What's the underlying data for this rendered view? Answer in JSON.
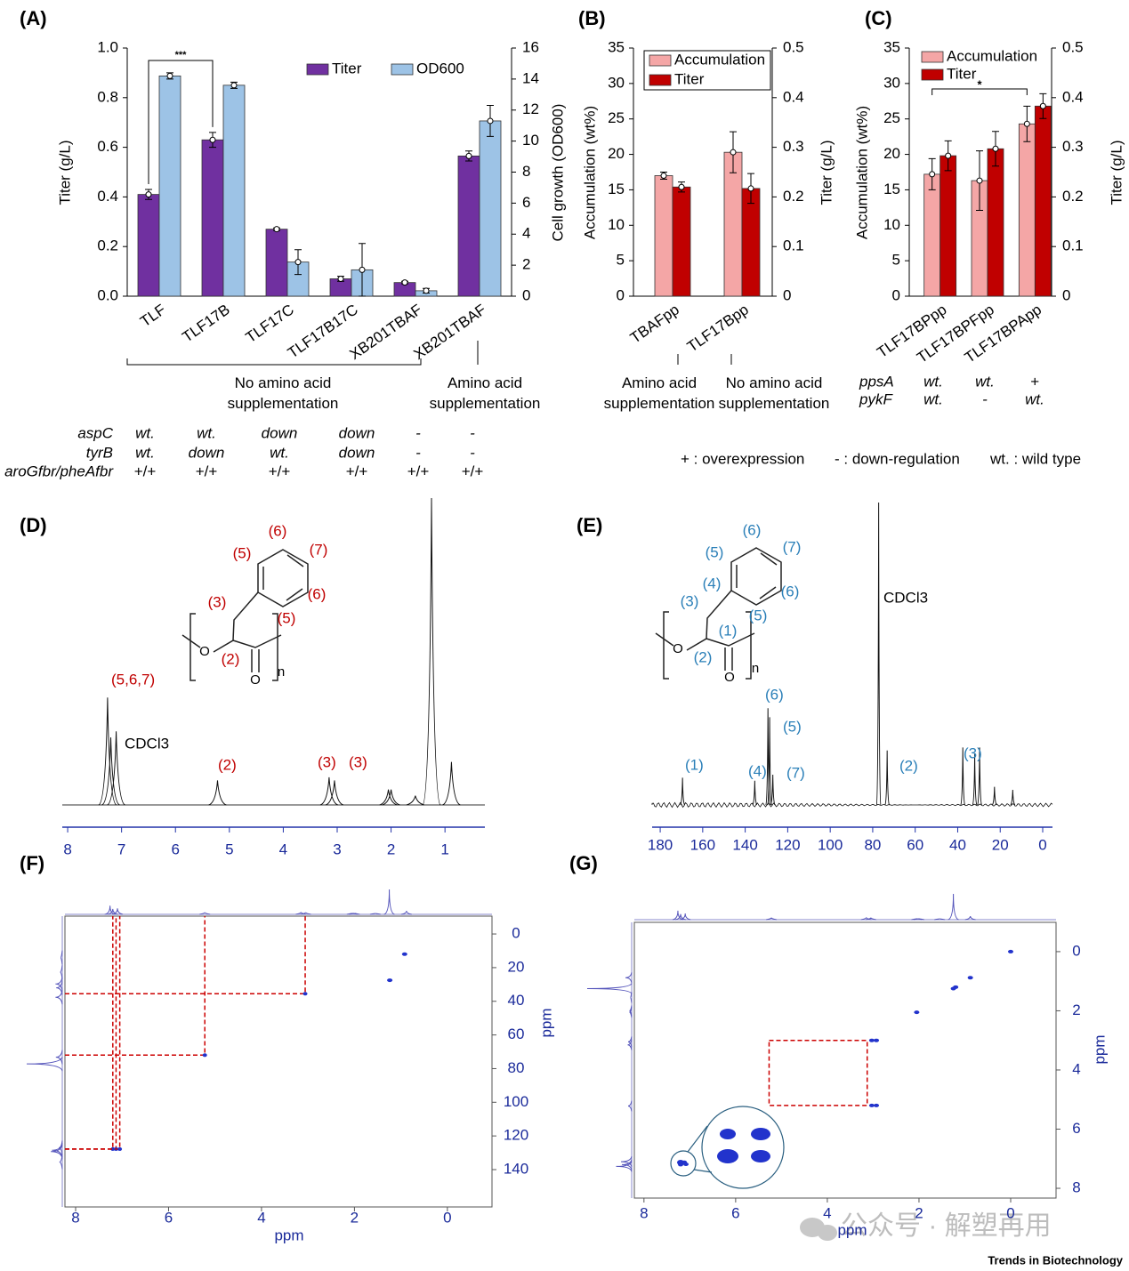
{
  "chart_data": [
    {
      "type": "bar",
      "panel": "(A)",
      "categories": [
        "TLF",
        "TLF17B",
        "TLF17C",
        "TLF17B17C",
        "XB201TBAF",
        "XB201TBAF"
      ],
      "series": [
        {
          "name": "Titer",
          "color": "#7030a0",
          "values": [
            0.41,
            0.63,
            0.27,
            0.07,
            0.055,
            0.565
          ],
          "errors": [
            0.02,
            0.03,
            0.005,
            0.01,
            0.005,
            0.02
          ]
        },
        {
          "name": "OD600",
          "color": "#9dc3e6",
          "axis": "y2",
          "values": [
            14.2,
            13.6,
            2.2,
            1.7,
            0.35,
            11.3
          ],
          "errors": [
            0.2,
            0.2,
            0.8,
            1.7,
            0.15,
            1.0
          ]
        }
      ],
      "y_label": "Titer (g/L)",
      "y2_label": "Cell growth (OD600)",
      "ylim": [
        0,
        1
      ],
      "yticks": [
        {
          "value": 0,
          "label": "0.0"
        },
        0.2,
        0.4,
        0.6,
        0.8,
        {
          "value": 1,
          "label": "1.0"
        }
      ],
      "y2lim": [
        0,
        16
      ],
      "y2ticks": [
        0,
        2,
        4,
        6,
        8,
        10,
        12,
        14,
        16
      ],
      "significance": "***",
      "groups": [
        "No amino acid supplementation",
        "Amino acid supplementation"
      ],
      "genotypes": {
        "rows": [
          "aspC",
          "tyrB",
          "aroGfbr/pheAfbr"
        ],
        "values": [
          [
            "wt.",
            "wt.",
            "down",
            "down",
            "-",
            "-"
          ],
          [
            "wt.",
            "down",
            "wt.",
            "down",
            "-",
            "-"
          ],
          [
            "+/+",
            "+/+",
            "+/+",
            "+/+",
            "+/+",
            "+/+"
          ]
        ]
      }
    },
    {
      "type": "bar",
      "panel": "(B)",
      "categories": [
        "TBAFpp",
        "TLF17Bpp"
      ],
      "series": [
        {
          "name": "Accumulation",
          "color": "#f4a6a6",
          "values": [
            17,
            20.3
          ],
          "errors": [
            0.5,
            2.9
          ]
        },
        {
          "name": "Titer",
          "color": "#c00000",
          "axis": "y2",
          "values": [
            0.22,
            0.217
          ],
          "errors": [
            0.01,
            0.03
          ]
        }
      ],
      "y_label": "Accumulation (wt%)",
      "y2_label": "Titer (g/L)",
      "ylim": [
        0,
        35
      ],
      "yticks": [
        0,
        5,
        10,
        15,
        20,
        25,
        30,
        35
      ],
      "y2lim": [
        0,
        0.5
      ],
      "y2ticks": [
        0,
        0.1,
        0.2,
        0.3,
        0.4,
        0.5
      ],
      "groups": [
        "Amino acid supplementation",
        "No amino acid supplementation"
      ]
    },
    {
      "type": "bar",
      "panel": "(C)",
      "categories": [
        "TLF17BPpp",
        "TLF17BPFpp",
        "TLF17BPApp"
      ],
      "series": [
        {
          "name": "Accumulation",
          "color": "#f4a6a6",
          "values": [
            17.2,
            16.3,
            24.3
          ],
          "errors": [
            2.2,
            4.2,
            2.5
          ]
        },
        {
          "name": "Titer",
          "color": "#c00000",
          "axis": "y2",
          "values": [
            0.283,
            0.297,
            0.383
          ],
          "errors": [
            0.03,
            0.035,
            0.025
          ]
        }
      ],
      "y_label": "Accumulation (wt%)",
      "y2_label": "Titer (g/L)",
      "ylim": [
        0,
        35
      ],
      "yticks": [
        0,
        5,
        10,
        15,
        20,
        25,
        30,
        35
      ],
      "y2lim": [
        0,
        0.5
      ],
      "y2ticks": [
        0,
        0.1,
        0.2,
        0.3,
        0.4,
        0.5
      ],
      "significance": "*",
      "genotypes": {
        "rows": [
          "ppsA",
          "pykF"
        ],
        "values": [
          [
            "wt.",
            "wt.",
            "+"
          ],
          [
            "wt.",
            "-",
            "wt."
          ]
        ]
      },
      "footnotes": [
        "+ : overexpression",
        "- : down-regulation",
        "wt. : wild type"
      ]
    },
    {
      "type": "spectrum",
      "panel": "(D)",
      "peaks": {
        "x": [
          7.26,
          7.2,
          7.1,
          5.22,
          3.15,
          3.05,
          2.05,
          2.0,
          1.55,
          1.25,
          0.88
        ],
        "intensity": [
          0.35,
          0.22,
          0.24,
          0.08,
          0.09,
          0.08,
          0.05,
          0.05,
          0.03,
          1.0,
          0.14
        ]
      },
      "xlim": [
        8.1,
        0.26
      ],
      "xticks": [
        8,
        7,
        6,
        5,
        4,
        3,
        2,
        1
      ],
      "peak_labels": [
        "(5,6,7)",
        "CDCl3",
        "(2)",
        "(3)",
        "(3)"
      ],
      "structure_labels": [
        "(6)",
        "(7)",
        "(5)",
        "(6)",
        "(3)",
        "(5)",
        "(2)"
      ],
      "atoms": [
        "O",
        "O",
        "n"
      ]
    },
    {
      "type": "spectrum",
      "panel": "(E)",
      "peaks": {
        "x": [
          169.5,
          135.5,
          129.3,
          128.5,
          127,
          77.2,
          73.2,
          37.6,
          32,
          29.7,
          22.7,
          14.1
        ],
        "intensity": [
          0.09,
          0.08,
          0.32,
          0.29,
          0.1,
          1.0,
          0.18,
          0.19,
          0.17,
          0.19,
          0.06,
          0.05
        ]
      },
      "xlim": [
        183.8,
        -4.6
      ],
      "xticks": [
        180,
        160,
        140,
        120,
        100,
        80,
        60,
        40,
        20,
        0
      ],
      "peak_labels": [
        "(1)",
        "(4)",
        "(6)",
        "(5)",
        "(7)",
        "CDCl3",
        "(2)",
        "(3)"
      ],
      "structure_labels": [
        "(6)",
        "(7)",
        "(5)",
        "(6)",
        "(4)",
        "(3)",
        "(5)",
        "(1)",
        "(2)"
      ],
      "atoms": [
        "O",
        "O",
        "n"
      ]
    },
    {
      "type": "nmr2d",
      "panel": "(F)",
      "xlim": [
        8.23,
        -0.96
      ],
      "xticks": [
        8,
        6,
        4,
        2,
        0
      ],
      "ylim": [
        -10.6,
        162.2
      ],
      "yticks": [
        0,
        20,
        40,
        60,
        80,
        100,
        120,
        140
      ],
      "x_label": "ppm",
      "y_label": "ppm",
      "cross_peaks": {
        "x": [
          1.24,
          0.92
        ],
        "y": [
          27.5,
          12
        ]
      },
      "assigned": {
        "x": [
          3.06,
          5.22,
          7.2,
          7.13,
          7.05
        ],
        "y": [
          35.5,
          72,
          127.8,
          127.8,
          127.8
        ]
      }
    },
    {
      "type": "nmr2d",
      "panel": "(G)",
      "xlim": [
        8.21,
        -0.99
      ],
      "xticks": [
        8,
        6,
        4,
        2,
        0
      ],
      "ylim": [
        -0.99,
        8.33
      ],
      "yticks": [
        0,
        2,
        4,
        6,
        8
      ],
      "x_label": "ppm",
      "y_label": "ppm",
      "cross_peaks": {
        "x": [
          0,
          1.25,
          1.2,
          0.88,
          2.05,
          3.03,
          2.93,
          3.03,
          2.93,
          7.2,
          7.12
        ],
        "y": [
          0,
          1.25,
          1.2,
          0.88,
          2.05,
          3.0,
          3.0,
          5.2,
          5.2,
          7.2,
          7.12
        ]
      },
      "box": {
        "x": [
          5.27,
          3.13
        ],
        "y": [
          3.0,
          5.2
        ]
      }
    }
  ],
  "watermark": "公众号 · 解塑再用",
  "credit": "Trends in Biotechnology"
}
